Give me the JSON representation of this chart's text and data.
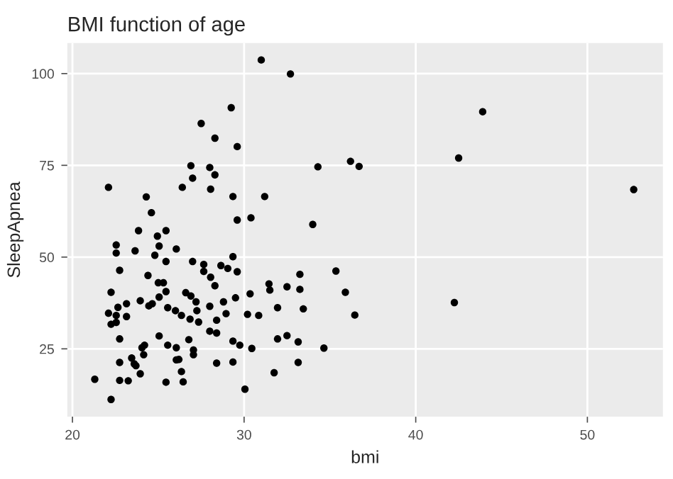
{
  "chart_data": {
    "type": "scatter",
    "title": "BMI function of age",
    "xlabel": "bmi",
    "ylabel": "SleepApnea",
    "xlim": [
      19.7,
      54.4
    ],
    "ylim": [
      6.5,
      108.3
    ],
    "xticks": [
      20,
      30,
      40,
      50
    ],
    "yticks": [
      25,
      50,
      75,
      100
    ],
    "grid": true,
    "marker": "circle",
    "series": [
      {
        "color": "#000000",
        "x": [
          31.0,
          32.7,
          29.25,
          43.9,
          27.5,
          28.3,
          29.6,
          42.5,
          36.2,
          26.9,
          28.0,
          34.3,
          36.7,
          28.3,
          27.0,
          22.1,
          26.4,
          28.05,
          52.7,
          24.3,
          29.35,
          31.2,
          24.6,
          30.4,
          29.6,
          34.0,
          23.85,
          25.45,
          24.95,
          22.55,
          25.05,
          26.05,
          23.65,
          22.55,
          24.8,
          29.35,
          25.45,
          27.0,
          27.65,
          28.65,
          29.05,
          22.75,
          35.35,
          27.65,
          29.6,
          33.25,
          24.4,
          28.05,
          31.45,
          25.0,
          25.3,
          28.3,
          32.5,
          31.5,
          33.25,
          25.45,
          22.25,
          35.9,
          26.6,
          30.35,
          26.9,
          25.05,
          29.5,
          23.95,
          27.2,
          42.25,
          23.15,
          28.8,
          24.65,
          24.45,
          28.0,
          22.65,
          25.55,
          31.95,
          33.45,
          27.25,
          26.0,
          22.1,
          28.95,
          30.2,
          22.55,
          26.35,
          30.85,
          36.45,
          23.15,
          26.85,
          28.4,
          27.35,
          22.55,
          22.25,
          28.0,
          28.4,
          25.05,
          32.5,
          22.75,
          26.78,
          31.95,
          29.35,
          33.15,
          24.2,
          25.55,
          29.75,
          24.05,
          26.05,
          34.65,
          30.45,
          27.05,
          23.45,
          27.05,
          24.15,
          23.6,
          23.7,
          22.75,
          26.05,
          26.2,
          28.4,
          29.35,
          33.15,
          23.95,
          26.35,
          31.75,
          21.3,
          22.75,
          23.25,
          25.45,
          26.45,
          30.05,
          22.25
        ],
        "values": [
          103.7,
          99.9,
          90.7,
          89.6,
          86.4,
          82.4,
          80.1,
          77.0,
          76.1,
          74.9,
          74.4,
          74.6,
          74.7,
          72.4,
          71.5,
          69.0,
          69.0,
          68.5,
          68.4,
          66.4,
          66.5,
          66.5,
          62.1,
          60.7,
          60.1,
          58.9,
          57.2,
          57.2,
          55.7,
          53.3,
          53.0,
          52.2,
          51.7,
          51.1,
          50.5,
          50.1,
          48.8,
          48.8,
          48.0,
          47.7,
          46.9,
          46.4,
          46.2,
          46.1,
          46.0,
          45.3,
          45.0,
          44.5,
          42.7,
          43.0,
          43.0,
          42.2,
          41.9,
          41.0,
          41.2,
          40.6,
          40.4,
          40.4,
          40.3,
          40.0,
          39.4,
          39.1,
          38.9,
          38.1,
          37.8,
          37.6,
          37.3,
          37.8,
          37.3,
          36.7,
          36.6,
          36.3,
          36.2,
          36.2,
          35.9,
          35.4,
          35.4,
          34.7,
          34.6,
          34.4,
          34.1,
          34.1,
          34.1,
          34.2,
          33.8,
          33.1,
          32.8,
          32.3,
          32.2,
          31.7,
          29.8,
          29.3,
          28.5,
          28.6,
          27.7,
          27.5,
          27.7,
          27.1,
          26.9,
          26.0,
          26.0,
          26.0,
          25.3,
          25.3,
          25.2,
          25.1,
          24.7,
          22.5,
          23.4,
          23.4,
          20.9,
          20.4,
          21.3,
          22.0,
          22.1,
          21.1,
          21.4,
          21.3,
          18.2,
          18.8,
          18.5,
          16.7,
          16.4,
          16.3,
          15.9,
          16.0,
          14.0,
          11.2
        ]
      }
    ]
  }
}
